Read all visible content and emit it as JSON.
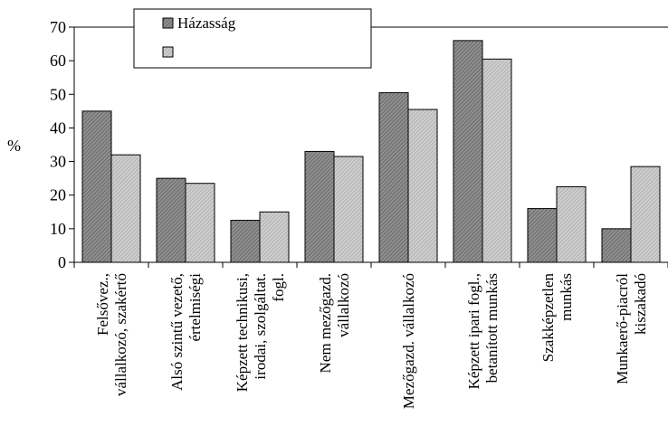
{
  "chart_data": {
    "type": "bar",
    "ylabel": "%",
    "ylim": [
      0,
      70
    ],
    "yticks": [
      0,
      10,
      20,
      30,
      40,
      50,
      60,
      70
    ],
    "grid": false,
    "legend_position": "top-left",
    "categories": [
      [
        "Felsővez.,",
        "vállalkozó, szakértő"
      ],
      [
        "Alsó szintű vezető,",
        "értelmiségi"
      ],
      [
        "Képzett technikusi,",
        "irodai, szolgáltat.",
        "fogl."
      ],
      [
        "Nem mezőgazd.",
        "vállalkozó"
      ],
      [
        "Mezőgazd. vállalkozó"
      ],
      [
        "Képzett ipari fogl.,",
        "betanított munkás"
      ],
      [
        "Szakképzetlen",
        "munkás"
      ],
      [
        "Munkaerő-piacról",
        "kiszakadó"
      ]
    ],
    "series": [
      {
        "name": "Házasság",
        "values": [
          45,
          25,
          12.5,
          33,
          50.5,
          66,
          16,
          10
        ],
        "color": "#9a9a9a"
      },
      {
        "name": "",
        "values": [
          32,
          23.5,
          15,
          31.5,
          45.5,
          60.5,
          22.5,
          28.5
        ],
        "color": "#c8c8c8"
      }
    ]
  }
}
